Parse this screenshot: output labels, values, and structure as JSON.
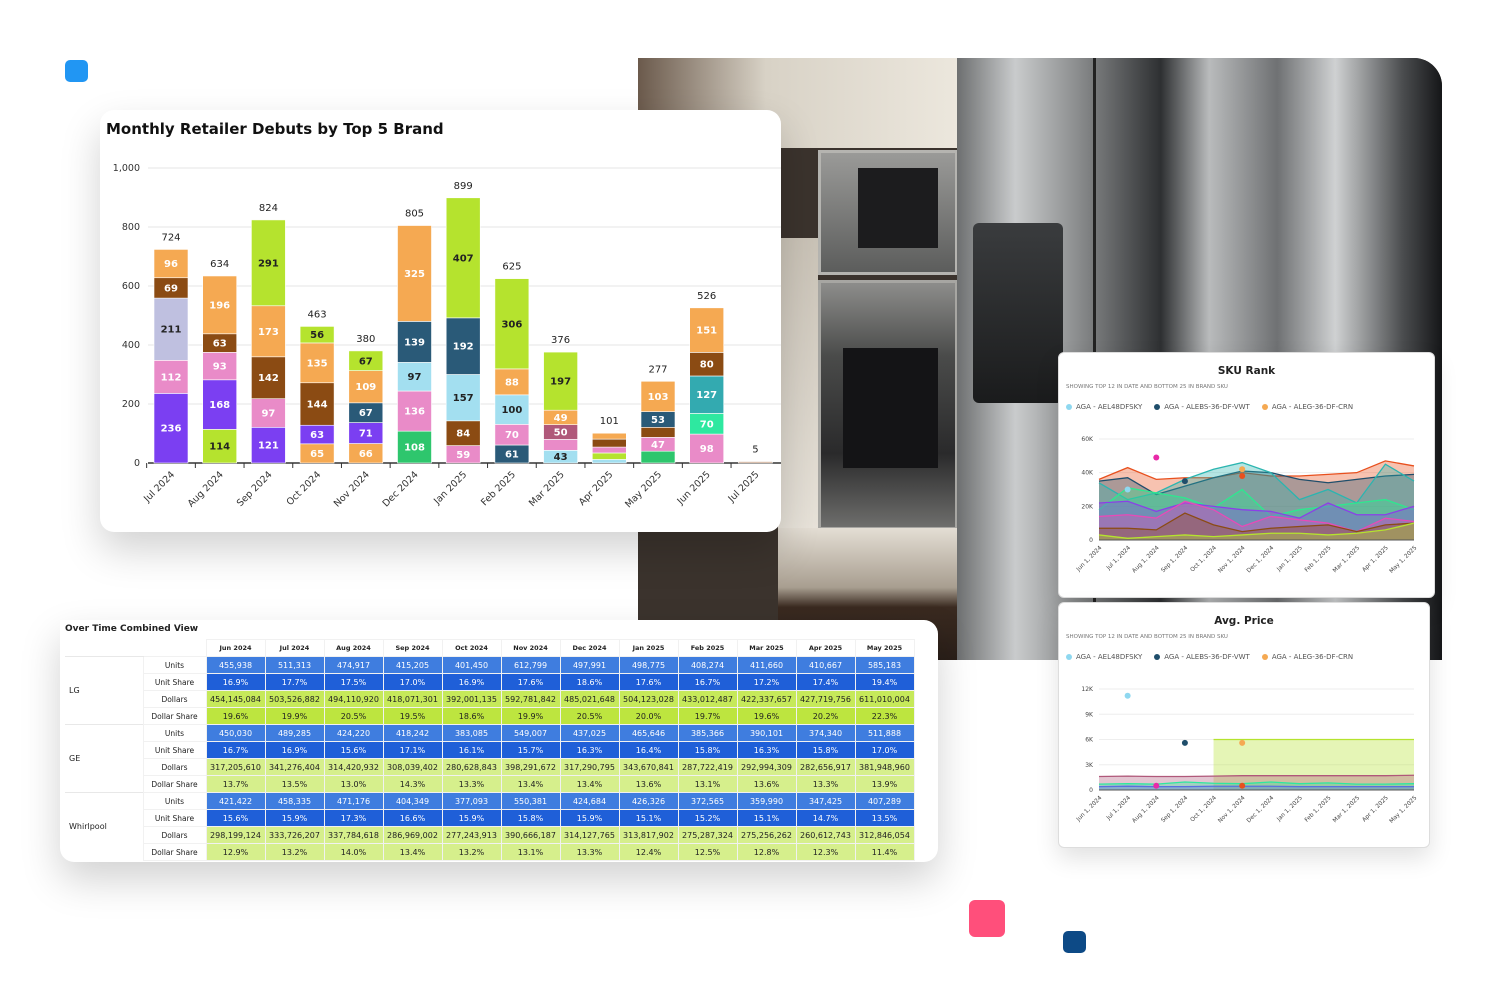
{
  "colors": {
    "accent_blue": "#2196f3",
    "accent_pink": "#ff4f7b",
    "accent_navy": "#0d4a86"
  },
  "chart_data": [
    {
      "type": "bar",
      "stacked": true,
      "title": "Monthly Retailer Debuts by Top 5 Brand",
      "xlabel": "",
      "ylabel": "",
      "ylim": [
        0,
        1000
      ],
      "yticks": [
        "0",
        "200",
        "400",
        "600",
        "800",
        "1,000"
      ],
      "categories": [
        "Jul 2024",
        "Aug 2024",
        "Sep 2024",
        "Oct 2024",
        "Nov 2024",
        "Dec 2024",
        "Jan 2025",
        "Feb 2025",
        "Mar 2025",
        "Apr 2025",
        "May 2025",
        "Jun 2025",
        "Jul 2025"
      ],
      "totals": [
        724,
        634,
        824,
        463,
        380,
        805,
        899,
        625,
        376,
        101,
        277,
        526,
        5
      ],
      "stacks": [
        [
          [
            236,
            "#7b3ff2"
          ],
          [
            112,
            "#e98bc8"
          ],
          [
            211,
            "#bfc0e0"
          ],
          [
            69,
            "#8b4b13"
          ],
          [
            96,
            "#f5a952"
          ]
        ],
        [
          [
            114,
            "#b5e32e"
          ],
          [
            168,
            "#7b3ff2"
          ],
          [
            93,
            "#e98bc8"
          ],
          [
            63,
            "#8b4b13"
          ],
          [
            196,
            "#f5a952"
          ]
        ],
        [
          [
            121,
            "#7b3ff2"
          ],
          [
            97,
            "#e98bc8"
          ],
          [
            142,
            "#8b4b13"
          ],
          [
            173,
            "#f5a952"
          ],
          [
            291,
            "#b5e32e"
          ]
        ],
        [
          [
            65,
            "#f5a952"
          ],
          [
            63,
            "#7b3ff2"
          ],
          [
            144,
            "#8b4b13"
          ],
          [
            135,
            "#f5a952"
          ],
          [
            56,
            "#b5e32e"
          ]
        ],
        [
          [
            66,
            "#f5a952"
          ],
          [
            71,
            "#7b3ff2"
          ],
          [
            67,
            "#2a5a78"
          ],
          [
            109,
            "#f5a952"
          ],
          [
            67,
            "#b5e32e"
          ]
        ],
        [
          [
            108,
            "#2ec66d"
          ],
          [
            136,
            "#e98bc8"
          ],
          [
            97,
            "#a3dff0"
          ],
          [
            139,
            "#2a5a78"
          ],
          [
            325,
            "#f5a952"
          ]
        ],
        [
          [
            59,
            "#e98bc8"
          ],
          [
            84,
            "#8b4b13"
          ],
          [
            157,
            "#a3dff0"
          ],
          [
            192,
            "#2a5a78"
          ],
          [
            407,
            "#b5e32e"
          ]
        ],
        [
          [
            61,
            "#2a5a78"
          ],
          [
            70,
            "#e98bc8"
          ],
          [
            100,
            "#a3dff0"
          ],
          [
            88,
            "#f5a952"
          ],
          [
            306,
            "#b5e32e"
          ]
        ],
        [
          [
            43,
            "#a3dff0"
          ],
          [
            37,
            "#e98bc8"
          ],
          [
            50,
            "#b0587a"
          ],
          [
            49,
            "#f5a952"
          ],
          [
            197,
            "#b5e32e"
          ]
        ],
        [
          [
            12,
            "#a3dff0"
          ],
          [
            22,
            "#b5e32e"
          ],
          [
            20,
            "#e98bc8"
          ],
          [
            27,
            "#8b4b13"
          ],
          [
            20,
            "#f5a952"
          ]
        ],
        [
          [
            40,
            "#2ec66d"
          ],
          [
            47,
            "#e98bc8"
          ],
          [
            34,
            "#8b4b13"
          ],
          [
            53,
            "#2a5a78"
          ],
          [
            103,
            "#f5a952"
          ]
        ],
        [
          [
            98,
            "#e98bc8"
          ],
          [
            70,
            "#2ee8a0"
          ],
          [
            127,
            "#33aab0"
          ],
          [
            80,
            "#8b4b13"
          ],
          [
            151,
            "#f5a952"
          ]
        ],
        [
          [
            5,
            "#c9a48a"
          ]
        ]
      ]
    },
    {
      "type": "line",
      "title": "SKU Rank",
      "subtitle": "SHOWING TOP 12 IN DATE AND BOTTOM 25 IN BRAND SKU",
      "ylim": [
        0,
        60000
      ],
      "yticks": [
        "0",
        "20K",
        "40K",
        "60K"
      ],
      "x": [
        "Jun 1, 2024",
        "Jul 1, 2024",
        "Aug 1, 2024",
        "Sep 1, 2024",
        "Oct 1, 2024",
        "Nov 1, 2024",
        "Dec 1, 2024",
        "Jan 1, 2025",
        "Feb 1, 2025",
        "Mar 1, 2025",
        "Apr 1, 2025",
        "May 1, 2025"
      ],
      "legend": [
        {
          "name": "AGA - AEL48DFSKY",
          "color": "#8fd8f0"
        },
        {
          "name": "AGA - ALEBS-36-DF-VWT",
          "color": "#1f4e6b"
        },
        {
          "name": "AGA - ALEG-36-DF-CRN",
          "color": "#f5a952"
        }
      ],
      "series": [
        {
          "color": "#e8501e",
          "values": [
            36000,
            43000,
            36000,
            37000,
            37000,
            40000,
            38000,
            38000,
            39000,
            40000,
            47000,
            44000
          ]
        },
        {
          "color": "#1f4e6b",
          "values": [
            35000,
            37000,
            27000,
            32000,
            37000,
            41000,
            40000,
            36000,
            34000,
            36000,
            38000,
            39000
          ]
        },
        {
          "color": "#2bb5b0",
          "values": [
            34000,
            24000,
            28000,
            36000,
            42000,
            46000,
            40000,
            24000,
            30000,
            22000,
            45000,
            35000
          ]
        },
        {
          "color": "#2ee88f",
          "values": [
            18000,
            31000,
            28000,
            25000,
            19000,
            30000,
            14000,
            18000,
            20000,
            22000,
            24000,
            18000
          ]
        },
        {
          "color": "#8b3fe8",
          "values": [
            22000,
            23000,
            17000,
            22000,
            20000,
            18000,
            17000,
            13000,
            22000,
            15000,
            15000,
            20000
          ]
        },
        {
          "color": "#e84ab8",
          "values": [
            14000,
            15000,
            13000,
            23000,
            18000,
            8000,
            14000,
            12000,
            10000,
            5000,
            13000,
            11000
          ]
        },
        {
          "color": "#8b4b13",
          "values": [
            7000,
            7000,
            6000,
            16000,
            9000,
            5000,
            7000,
            8000,
            9000,
            5000,
            9000,
            10000
          ]
        },
        {
          "color": "#b5e32e",
          "values": [
            3000,
            1000,
            2000,
            3000,
            2000,
            3000,
            4000,
            4000,
            3000,
            4000,
            6000,
            10000
          ]
        }
      ],
      "points": [
        {
          "x": "Jul 1, 2024",
          "y": 30000,
          "color": "#8fd8f0"
        },
        {
          "x": "Sep 1, 2024",
          "y": 35000,
          "color": "#1f4e6b"
        },
        {
          "x": "Nov 1, 2024",
          "y": 42000,
          "color": "#f5a952"
        },
        {
          "x": "Nov 1, 2024",
          "y": 38000,
          "color": "#e8501e"
        },
        {
          "x": "Aug 1, 2024",
          "y": 49000,
          "color": "#e82aa8"
        }
      ]
    },
    {
      "type": "area",
      "title": "Avg. Price",
      "subtitle": "SHOWING TOP 12 IN DATE AND BOTTOM 25 IN BRAND SKU",
      "ylim": [
        0,
        12000
      ],
      "yticks": [
        "0",
        "3K",
        "6K",
        "9K",
        "12K"
      ],
      "x": [
        "Jun 1, 2024",
        "Jul 1, 2024",
        "Aug 1, 2024",
        "Sep 1, 2024",
        "Oct 1, 2024",
        "Nov 1, 2024",
        "Dec 1, 2024",
        "Jan 1, 2025",
        "Feb 1, 2025",
        "Mar 1, 2025",
        "Apr 1, 2025",
        "May 1, 2025"
      ],
      "legend": [
        {
          "name": "AGA - AEL48DFSKY",
          "color": "#8fd8f0"
        },
        {
          "name": "AGA - ALEBS-36-DF-VWT",
          "color": "#1f4e6b"
        },
        {
          "name": "AGA - ALEG-36-DF-CRN",
          "color": "#f5a952"
        }
      ],
      "series": [
        {
          "color": "#b5e32e",
          "values": [
            null,
            null,
            null,
            null,
            6000,
            6000,
            6000,
            6000,
            6000,
            6000,
            6000,
            6000
          ]
        },
        {
          "color": "#b0587a",
          "values": [
            1600,
            1650,
            1600,
            1600,
            1650,
            1700,
            1700,
            1700,
            1700,
            1700,
            1700,
            1750
          ]
        },
        {
          "color": "#2ee8a0",
          "values": [
            700,
            750,
            700,
            950,
            800,
            750,
            950,
            750,
            850,
            700,
            700,
            750
          ]
        },
        {
          "color": "#5a6ee0",
          "values": [
            400,
            450,
            400,
            400,
            450,
            450,
            450,
            400,
            400,
            400,
            400,
            400
          ]
        }
      ],
      "points": [
        {
          "x": "Jul 1, 2024",
          "y": 11200,
          "color": "#8fd8f0"
        },
        {
          "x": "Sep 1, 2024",
          "y": 5600,
          "color": "#1f4e6b"
        },
        {
          "x": "Nov 1, 2024",
          "y": 5600,
          "color": "#f5a952"
        },
        {
          "x": "Aug 1, 2024",
          "y": 500,
          "color": "#e82aa8"
        },
        {
          "x": "Nov 1, 2024",
          "y": 500,
          "color": "#e8501e"
        }
      ]
    }
  ],
  "table": {
    "title": "Over Time Combined View",
    "months": [
      "Jun 2024",
      "Jul 2024",
      "Aug 2024",
      "Sep 2024",
      "Oct 2024",
      "Nov 2024",
      "Dec 2024",
      "Jan 2025",
      "Feb 2025",
      "Mar 2025",
      "Apr 2025",
      "May 2025"
    ],
    "metrics": [
      "Units",
      "Unit Share",
      "Dollars",
      "Dollar Share"
    ],
    "brands": [
      {
        "name": "LG",
        "rows": [
          [
            "455,938",
            "511,313",
            "474,917",
            "415,205",
            "401,450",
            "612,799",
            "497,991",
            "498,775",
            "408,274",
            "411,660",
            "410,667",
            "585,183"
          ],
          [
            "16.9%",
            "17.7%",
            "17.5%",
            "17.0%",
            "16.9%",
            "17.6%",
            "18.6%",
            "17.6%",
            "16.7%",
            "17.2%",
            "17.4%",
            "19.4%"
          ],
          [
            "454,145,084",
            "503,526,882",
            "494,110,920",
            "418,071,301",
            "392,001,135",
            "592,781,842",
            "485,021,648",
            "504,123,028",
            "433,012,487",
            "422,337,657",
            "427,719,756",
            "611,010,004"
          ],
          [
            "19.6%",
            "19.9%",
            "20.5%",
            "19.5%",
            "18.6%",
            "19.9%",
            "20.5%",
            "20.0%",
            "19.7%",
            "19.6%",
            "20.2%",
            "22.3%"
          ]
        ]
      },
      {
        "name": "GE",
        "rows": [
          [
            "450,030",
            "489,285",
            "424,220",
            "418,242",
            "383,085",
            "549,007",
            "437,025",
            "465,646",
            "385,366",
            "390,101",
            "374,340",
            "511,888"
          ],
          [
            "16.7%",
            "16.9%",
            "15.6%",
            "17.1%",
            "16.1%",
            "15.7%",
            "16.3%",
            "16.4%",
            "15.8%",
            "16.3%",
            "15.8%",
            "17.0%"
          ],
          [
            "317,205,610",
            "341,276,404",
            "314,420,932",
            "308,039,402",
            "280,628,843",
            "398,291,672",
            "317,290,795",
            "343,670,841",
            "287,722,419",
            "292,994,309",
            "282,656,917",
            "381,948,960"
          ],
          [
            "13.7%",
            "13.5%",
            "13.0%",
            "14.3%",
            "13.3%",
            "13.4%",
            "13.4%",
            "13.6%",
            "13.1%",
            "13.6%",
            "13.3%",
            "13.9%"
          ]
        ]
      },
      {
        "name": "Whirlpool",
        "rows": [
          [
            "421,422",
            "458,335",
            "471,176",
            "404,349",
            "377,093",
            "550,381",
            "424,684",
            "426,326",
            "372,565",
            "359,990",
            "347,425",
            "407,289"
          ],
          [
            "15.6%",
            "15.9%",
            "17.3%",
            "16.6%",
            "15.9%",
            "15.8%",
            "15.9%",
            "15.1%",
            "15.2%",
            "15.1%",
            "14.7%",
            "13.5%"
          ],
          [
            "298,199,124",
            "333,726,207",
            "337,784,618",
            "286,969,002",
            "277,243,913",
            "390,666,187",
            "314,127,765",
            "313,817,902",
            "275,287,324",
            "275,256,262",
            "260,612,743",
            "312,846,054"
          ],
          [
            "12.9%",
            "13.2%",
            "14.0%",
            "13.4%",
            "13.2%",
            "13.1%",
            "13.3%",
            "12.4%",
            "12.5%",
            "12.8%",
            "12.3%",
            "11.4%"
          ]
        ]
      }
    ]
  }
}
